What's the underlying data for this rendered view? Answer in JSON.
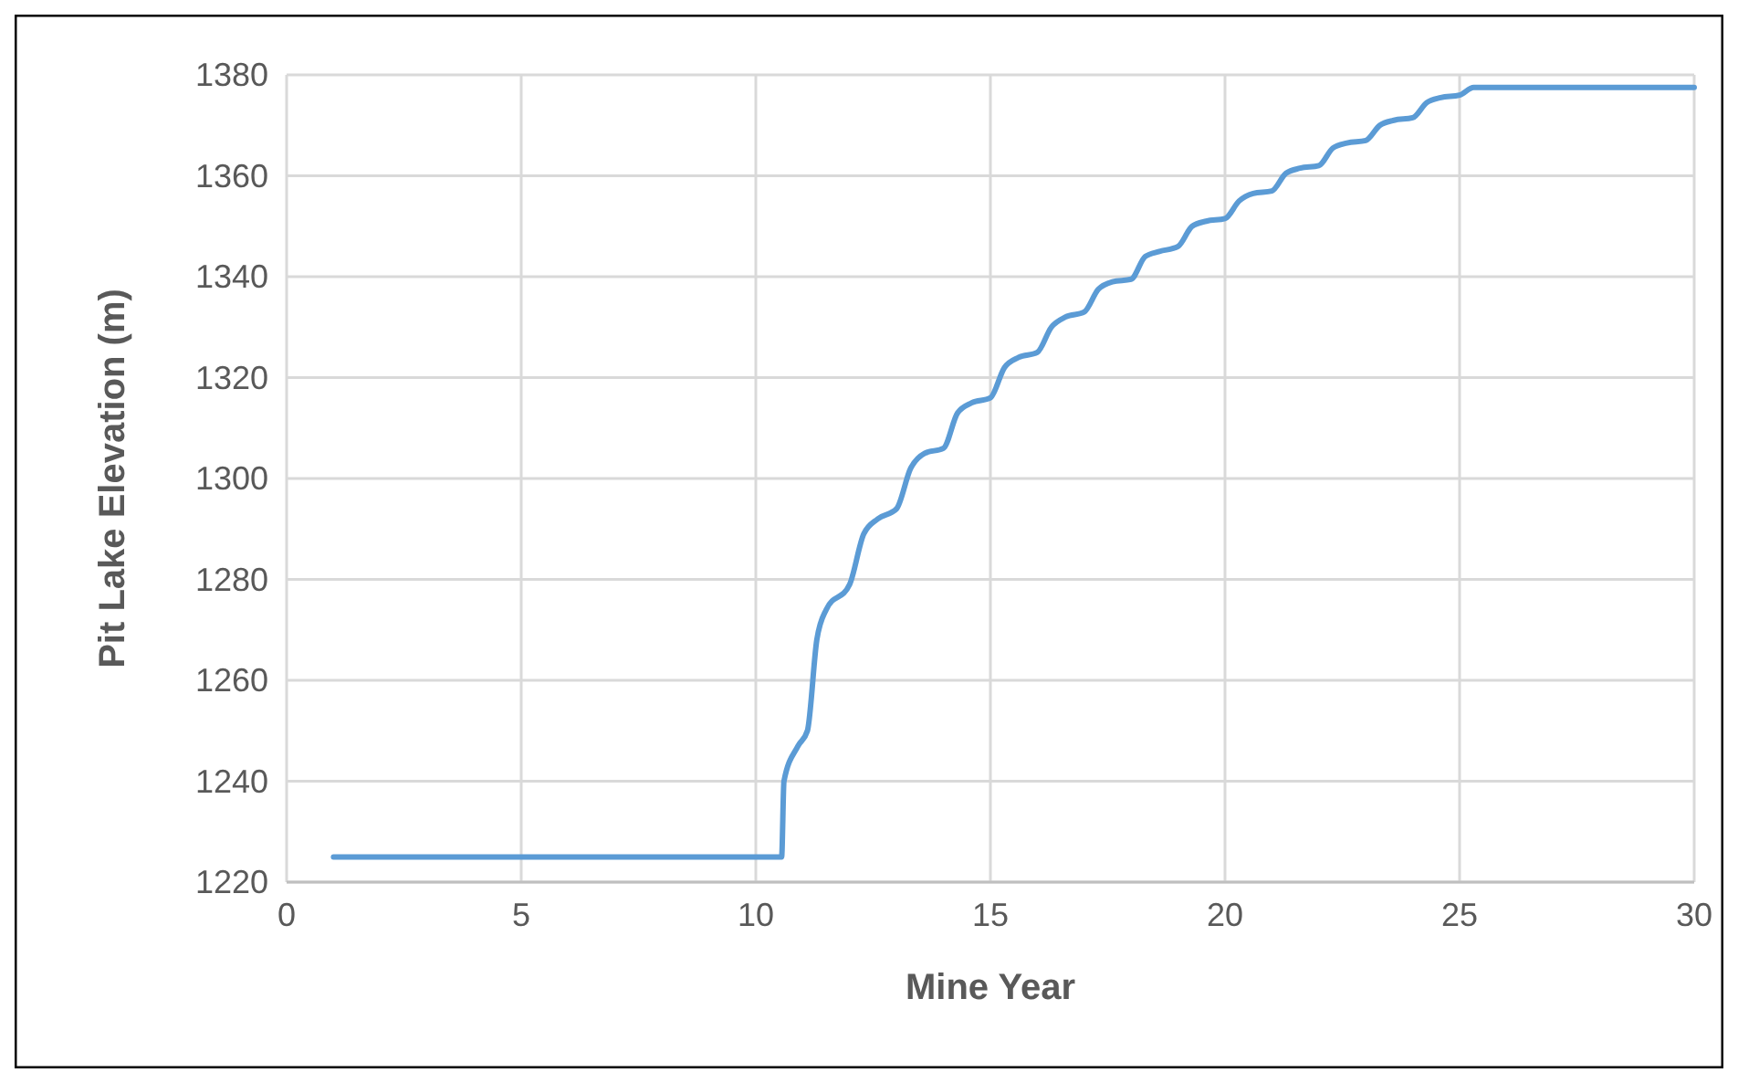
{
  "chart_data": {
    "type": "line",
    "xlabel": "Mine Year",
    "ylabel": "Pit Lake Elevation (m)",
    "xlim": [
      0,
      30
    ],
    "xticks": [
      0,
      5,
      10,
      15,
      20,
      25,
      30
    ],
    "ylim": [
      1220,
      1380
    ],
    "yticks": [
      1220,
      1240,
      1260,
      1280,
      1300,
      1320,
      1340,
      1360,
      1380
    ],
    "grid": true,
    "marker": "none",
    "line_style": "solid",
    "series": [
      {
        "color": "#5b9bd5",
        "x": [
          1,
          10.55,
          10.6,
          10.9,
          11.1,
          11.3,
          11.5,
          12,
          12.3,
          12.6,
          13,
          13.3,
          13.6,
          14,
          14.3,
          14.6,
          15,
          15.3,
          15.6,
          16,
          16.3,
          16.6,
          17,
          17.3,
          17.6,
          18,
          18.3,
          18.6,
          19,
          19.3,
          19.6,
          20,
          20.3,
          20.6,
          21,
          21.3,
          21.6,
          22,
          22.3,
          22.6,
          23,
          23.3,
          23.6,
          24,
          24.3,
          24.6,
          25,
          25.3,
          30
        ],
        "values": [
          1225,
          1225,
          1240,
          1247,
          1250,
          1268,
          1274,
          1279,
          1289,
          1292,
          1294,
          1302,
          1305,
          1306,
          1313,
          1315,
          1316,
          1322,
          1324,
          1325,
          1330,
          1332,
          1333,
          1337.5,
          1339,
          1339.5,
          1344,
          1345,
          1346,
          1350,
          1351,
          1351.5,
          1355,
          1356.5,
          1357,
          1360.5,
          1361.5,
          1362,
          1365.5,
          1366.5,
          1367,
          1370,
          1371,
          1371.5,
          1374.5,
          1375.5,
          1376,
          1377.5,
          1377.5
        ]
      }
    ]
  }
}
